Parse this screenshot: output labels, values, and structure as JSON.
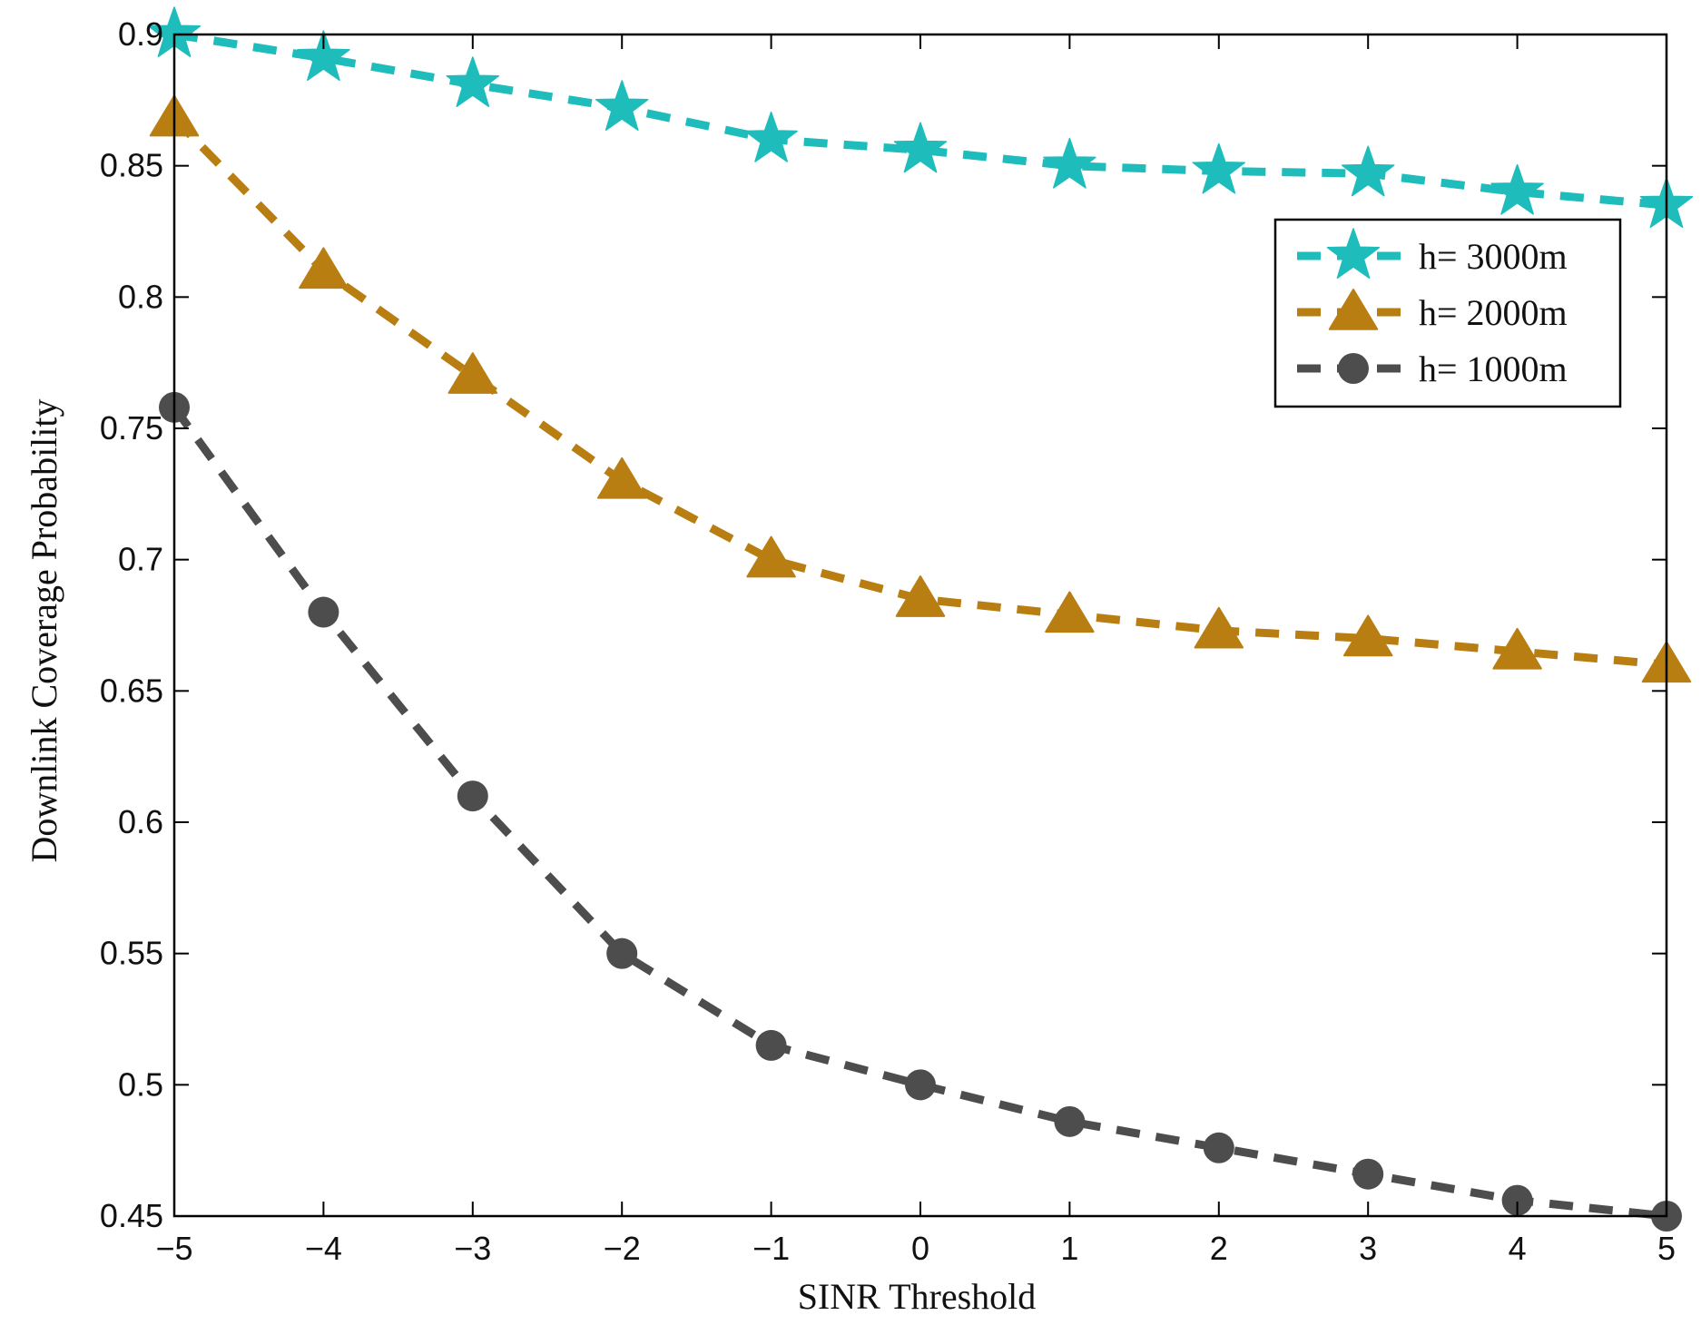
{
  "chart_data": {
    "type": "line",
    "title": "",
    "xlabel": "SINR Threshold",
    "ylabel": "Downlink Coverage Probability",
    "xlim": [
      -5,
      5
    ],
    "ylim": [
      0.45,
      0.9
    ],
    "x": [
      -5,
      -4,
      -3,
      -2,
      -1,
      0,
      1,
      2,
      3,
      4,
      5
    ],
    "xtick_labels": [
      "−5",
      "−4",
      "−3",
      "−2",
      "−1",
      "0",
      "1",
      "2",
      "3",
      "4",
      "5"
    ],
    "ytick_labels": [
      "0.45",
      "0.5",
      "0.55",
      "0.6",
      "0.65",
      "0.7",
      "0.75",
      "0.8",
      "0.85",
      "0.9"
    ],
    "yticks": [
      0.45,
      0.5,
      0.55,
      0.6,
      0.65,
      0.7,
      0.75,
      0.8,
      0.85,
      0.9
    ],
    "grid": false,
    "legend_position": "top-right",
    "series": [
      {
        "name": "h= 3000m",
        "marker": "star",
        "color": "#1fbcbc",
        "values": [
          0.9,
          0.891,
          0.881,
          0.872,
          0.86,
          0.856,
          0.85,
          0.848,
          0.847,
          0.84,
          0.835
        ]
      },
      {
        "name": "h= 2000m",
        "marker": "triangle",
        "color": "#b97e12",
        "values": [
          0.868,
          0.81,
          0.77,
          0.73,
          0.7,
          0.685,
          0.679,
          0.673,
          0.67,
          0.665,
          0.66
        ]
      },
      {
        "name": "h= 1000m",
        "marker": "circle",
        "color": "#4d4d4d",
        "values": [
          0.758,
          0.68,
          0.61,
          0.55,
          0.515,
          0.5,
          0.486,
          0.476,
          0.466,
          0.456,
          0.45
        ]
      }
    ]
  }
}
